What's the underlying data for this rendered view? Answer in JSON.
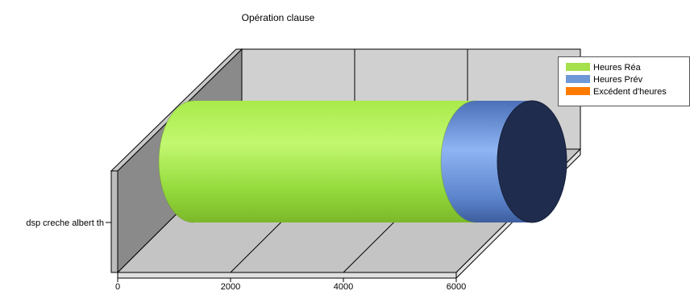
{
  "chart_data": {
    "type": "bar",
    "orientation": "horizontal",
    "style": "3d-cylinder-stacked",
    "title": "Opération clause",
    "categories": [
      "dsp creche albert th"
    ],
    "series": [
      {
        "name": "Heures Réa",
        "values": [
          5000
        ],
        "color": "#a6e04a"
      },
      {
        "name": "Heures Prév",
        "values": [
          1000
        ],
        "color": "#6f98d8"
      },
      {
        "name": "Excédent d'heures",
        "values": [
          0
        ],
        "color": "#ff7b00"
      }
    ],
    "xticks": [
      "0",
      "2000",
      "4000",
      "6000"
    ],
    "xlim": [
      0,
      6000
    ],
    "grid": true,
    "legend_position": "top-right"
  }
}
